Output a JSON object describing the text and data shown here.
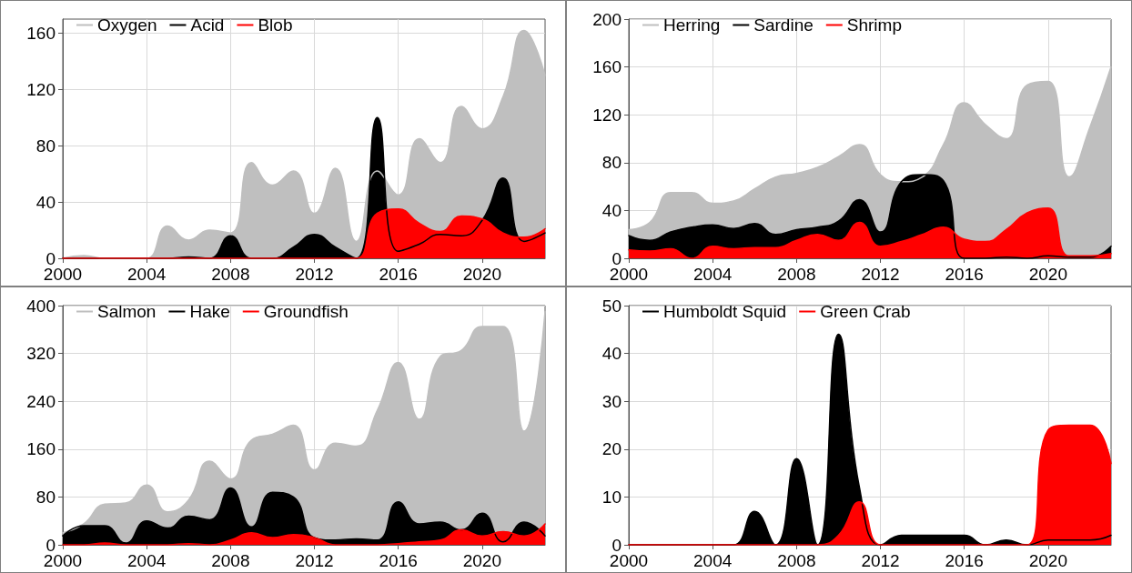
{
  "chart_data": [
    {
      "type": "area",
      "x": [
        2000,
        2001,
        2002,
        2003,
        2004,
        2005,
        2006,
        2007,
        2008,
        2009,
        2010,
        2011,
        2012,
        2013,
        2014,
        2015,
        2016,
        2017,
        2018,
        2019,
        2020,
        2021,
        2022,
        2023
      ],
      "xlim": [
        2000,
        2023
      ],
      "xticks": [
        2000,
        2004,
        2008,
        2012,
        2016,
        2020
      ],
      "ylim": [
        0,
        170
      ],
      "yticks": [
        0,
        40,
        80,
        120,
        160
      ],
      "grid": true,
      "legend": "top left",
      "series": [
        {
          "name": "Oxygen",
          "color": "#bfbfbf",
          "values": [
            0,
            2,
            0,
            0,
            0,
            23,
            13,
            20,
            18,
            68,
            52,
            62,
            32,
            64,
            12,
            62,
            45,
            85,
            68,
            108,
            92,
            115,
            162,
            130
          ]
        },
        {
          "name": "Acid",
          "color": "#000000",
          "values": [
            0,
            0,
            0,
            0,
            0,
            0,
            1,
            0,
            16,
            0,
            0,
            8,
            17,
            8,
            0,
            100,
            5,
            10,
            17,
            16,
            27,
            57,
            12,
            18
          ]
        },
        {
          "name": "Blob",
          "color": "#ff0000",
          "values": [
            0,
            0,
            0,
            0,
            0,
            0,
            0,
            0,
            0,
            0,
            0,
            0,
            0,
            0,
            0,
            32,
            35,
            25,
            19,
            30,
            28,
            18,
            15,
            21
          ]
        }
      ]
    },
    {
      "type": "area",
      "x": [
        2000,
        2001,
        2002,
        2003,
        2004,
        2005,
        2006,
        2007,
        2008,
        2009,
        2010,
        2011,
        2012,
        2013,
        2014,
        2015,
        2016,
        2017,
        2018,
        2019,
        2020,
        2021,
        2022,
        2023
      ],
      "xlim": [
        2000,
        2023
      ],
      "xticks": [
        2000,
        2004,
        2008,
        2012,
        2016,
        2020
      ],
      "ylim": [
        0,
        200
      ],
      "yticks": [
        0,
        40,
        80,
        120,
        160,
        200
      ],
      "grid": true,
      "legend": "top left",
      "series": [
        {
          "name": "Herring",
          "color": "#bfbfbf",
          "values": [
            24,
            30,
            55,
            55,
            46,
            48,
            58,
            68,
            71,
            76,
            85,
            95,
            70,
            64,
            68,
            95,
            130,
            112,
            100,
            145,
            148,
            68,
            110,
            160
          ]
        },
        {
          "name": "Sardine",
          "color": "#000000",
          "values": [
            19,
            15,
            22,
            26,
            28,
            25,
            29,
            20,
            24,
            26,
            31,
            49,
            22,
            64,
            70,
            65,
            0,
            0,
            1,
            0,
            2,
            1,
            1,
            10
          ]
        },
        {
          "name": "Shrimp",
          "color": "#ff0000",
          "values": [
            7,
            6,
            8,
            0,
            10,
            8,
            9,
            9,
            15,
            20,
            15,
            30,
            10,
            14,
            20,
            26,
            16,
            14,
            24,
            38,
            42,
            2,
            2,
            4
          ]
        }
      ]
    },
    {
      "type": "area",
      "x": [
        2000,
        2001,
        2002,
        2003,
        2004,
        2005,
        2006,
        2007,
        2008,
        2009,
        2010,
        2011,
        2012,
        2013,
        2014,
        2015,
        2016,
        2017,
        2018,
        2019,
        2020,
        2021,
        2022,
        2023
      ],
      "xlim": [
        2000,
        2023
      ],
      "xticks": [
        2000,
        2004,
        2008,
        2012,
        2016,
        2020
      ],
      "ylim": [
        0,
        400
      ],
      "yticks": [
        0,
        80,
        160,
        240,
        320,
        400
      ],
      "grid": true,
      "legend": "top left",
      "series": [
        {
          "name": "Salmon",
          "color": "#bfbfbf",
          "values": [
            20,
            35,
            68,
            70,
            100,
            55,
            75,
            140,
            110,
            175,
            185,
            200,
            125,
            170,
            165,
            225,
            305,
            210,
            315,
            325,
            365,
            365,
            190,
            390
          ]
        },
        {
          "name": "Hake",
          "color": "#000000",
          "values": [
            15,
            32,
            32,
            3,
            40,
            28,
            48,
            42,
            95,
            30,
            88,
            80,
            12,
            8,
            10,
            8,
            72,
            35,
            38,
            25,
            53,
            5,
            38,
            15
          ]
        },
        {
          "name": "Groundfish",
          "color": "#ff0000",
          "values": [
            0,
            0,
            3,
            0,
            0,
            0,
            2,
            0,
            8,
            20,
            12,
            17,
            12,
            0,
            0,
            0,
            2,
            5,
            8,
            25,
            15,
            22,
            15,
            35
          ]
        }
      ]
    },
    {
      "type": "area",
      "x": [
        2000,
        2001,
        2002,
        2003,
        2004,
        2005,
        2006,
        2007,
        2008,
        2009,
        2010,
        2011,
        2012,
        2013,
        2014,
        2015,
        2016,
        2017,
        2018,
        2019,
        2020,
        2021,
        2022,
        2023
      ],
      "xlim": [
        2000,
        2023
      ],
      "xticks": [
        2000,
        2004,
        2008,
        2012,
        2016,
        2020
      ],
      "ylim": [
        0,
        50
      ],
      "yticks": [
        0,
        10,
        20,
        30,
        40,
        50
      ],
      "grid": true,
      "legend": "top left",
      "series": [
        {
          "name": "Humboldt Squid",
          "color": "#000000",
          "values": [
            0,
            0,
            0,
            0,
            0,
            0,
            7,
            0,
            18,
            0,
            44,
            12,
            0,
            2,
            2,
            2,
            2,
            0,
            1,
            0,
            1,
            1,
            1,
            2
          ]
        },
        {
          "name": "Green Crab",
          "color": "#ff0000",
          "values": [
            0,
            0,
            0,
            0,
            0,
            0,
            0,
            0,
            0,
            0,
            2,
            9,
            0,
            0,
            0,
            0,
            0,
            0,
            0,
            0,
            24,
            25,
            25,
            17
          ]
        }
      ]
    }
  ]
}
